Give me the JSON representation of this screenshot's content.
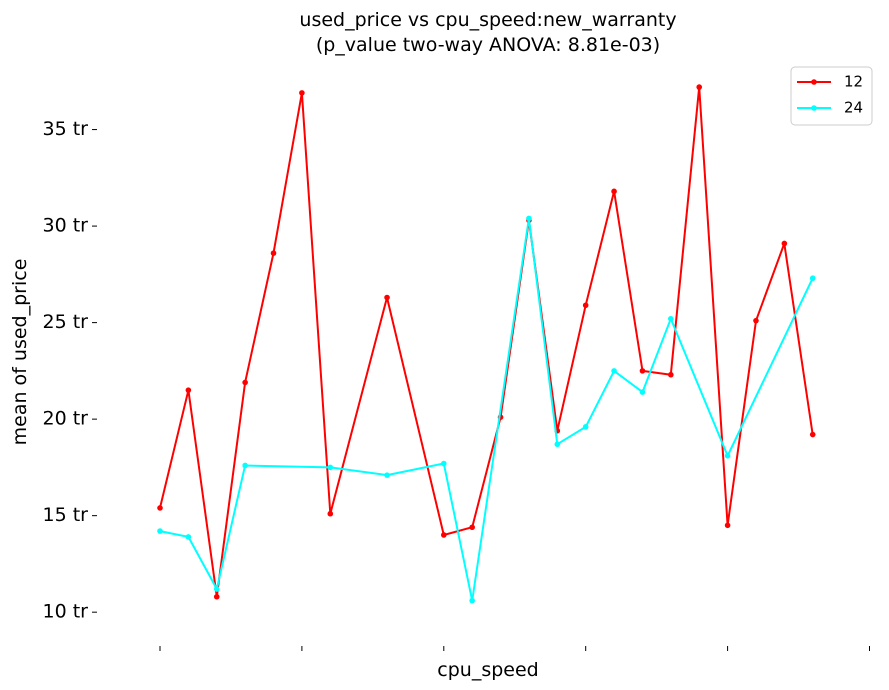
{
  "chart_data": {
    "type": "line",
    "title_line1": "used_price vs cpu_speed:new_warranty",
    "title_line2": "(p_value two-way ANOVA: 8.81e-03)",
    "xlabel": "cpu_speed",
    "ylabel": "mean of used_price",
    "ylim": [
      8.3,
      38.5
    ],
    "yticks": [
      {
        "value": 10,
        "label": "10 tr"
      },
      {
        "value": 15,
        "label": "15 tr"
      },
      {
        "value": 20,
        "label": "20 tr"
      },
      {
        "value": 25,
        "label": "25 tr"
      },
      {
        "value": 30,
        "label": "30 tr"
      },
      {
        "value": 35,
        "label": "35 tr"
      }
    ],
    "xlim": [
      0,
      25.3
    ],
    "xticks": [
      0,
      5,
      10,
      15,
      20,
      25
    ],
    "legend_position": "top-right",
    "series": [
      {
        "name": "12",
        "color": "#ff0000",
        "points": [
          [
            0,
            15.4
          ],
          [
            1,
            21.5
          ],
          [
            2,
            10.8
          ],
          [
            3,
            21.9
          ],
          [
            4,
            28.6
          ],
          [
            5,
            36.9
          ],
          [
            6,
            15.1
          ],
          [
            8,
            26.3
          ],
          [
            10,
            14.0
          ],
          [
            11,
            14.4
          ],
          [
            12,
            20.1
          ],
          [
            13,
            30.3
          ],
          [
            14,
            19.4
          ],
          [
            15,
            25.9
          ],
          [
            16,
            31.8
          ],
          [
            17,
            22.5
          ],
          [
            18,
            22.3
          ],
          [
            19,
            37.2
          ],
          [
            20,
            14.5
          ],
          [
            21,
            25.1
          ],
          [
            22,
            29.1
          ],
          [
            23,
            19.2
          ]
        ]
      },
      {
        "name": "24",
        "color": "#00ffff",
        "points": [
          [
            0,
            14.2
          ],
          [
            1,
            13.9
          ],
          [
            2,
            11.2
          ],
          [
            3,
            17.6
          ],
          [
            6,
            17.5
          ],
          [
            8,
            17.1
          ],
          [
            10,
            17.7
          ],
          [
            11,
            10.6
          ],
          [
            13,
            30.4
          ],
          [
            14,
            18.7
          ],
          [
            15,
            19.6
          ],
          [
            16,
            22.5
          ],
          [
            17,
            21.4
          ],
          [
            18,
            25.2
          ],
          [
            20,
            18.1
          ],
          [
            23,
            27.3
          ]
        ]
      }
    ]
  }
}
